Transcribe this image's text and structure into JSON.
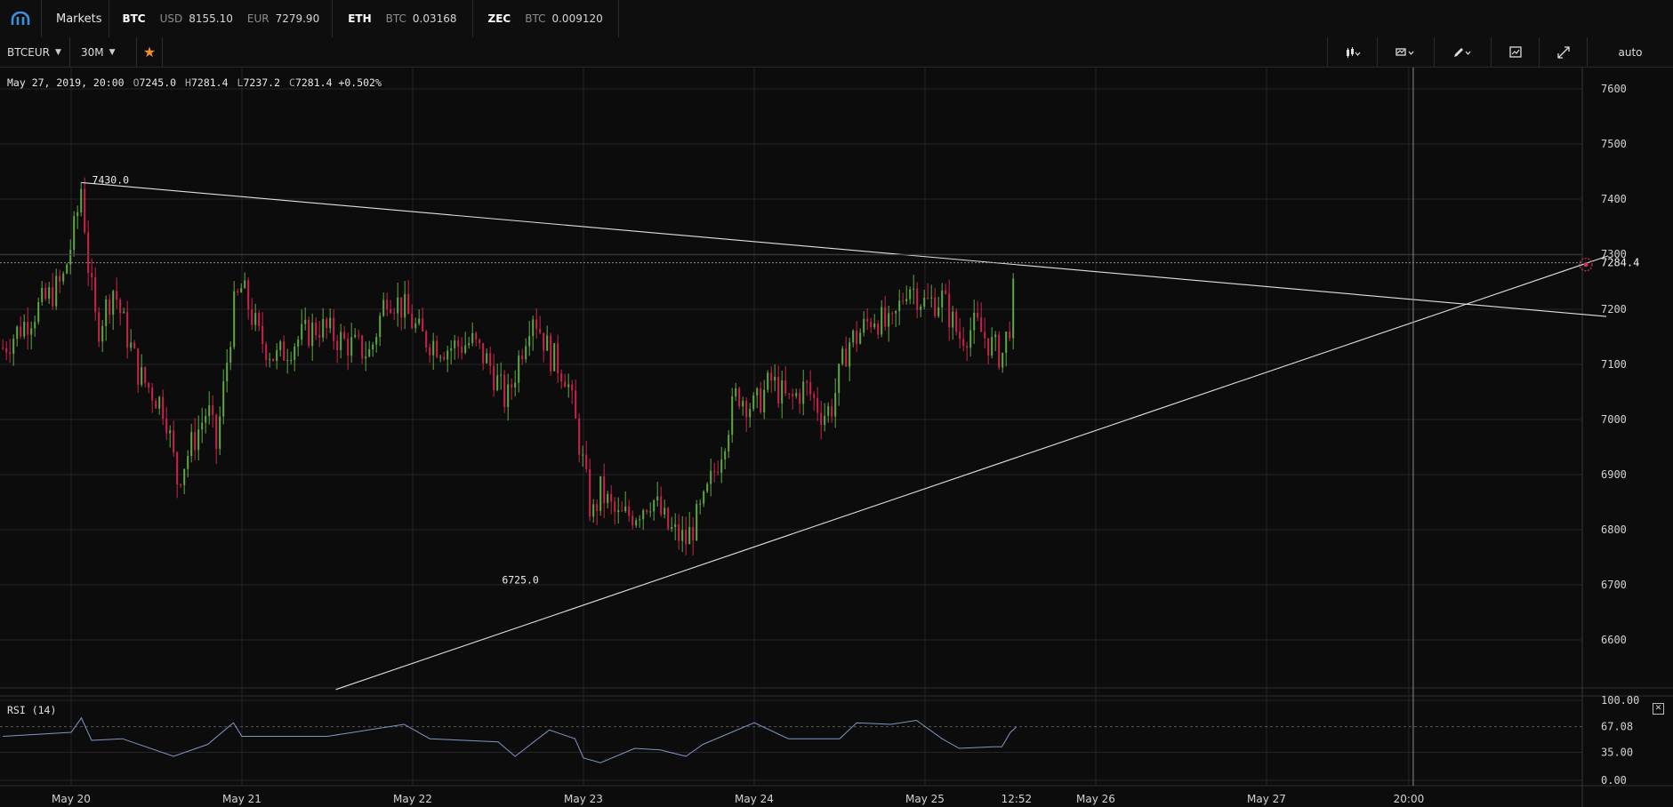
{
  "ticker": {
    "markets_label": "Markets",
    "items": [
      {
        "symbol": "BTC",
        "quotes": [
          {
            "cur": "USD",
            "val": "8155.10"
          },
          {
            "cur": "EUR",
            "val": "7279.90"
          }
        ]
      },
      {
        "symbol": "ETH",
        "quotes": [
          {
            "cur": "BTC",
            "val": "0.03168"
          }
        ]
      },
      {
        "symbol": "ZEC",
        "quotes": [
          {
            "cur": "BTC",
            "val": "0.009120"
          }
        ]
      }
    ]
  },
  "toolbar": {
    "pair": "BTCEUR",
    "interval": "30M",
    "scale_label": "auto",
    "icons": [
      "candle-type-icon",
      "indicators-icon",
      "drawing-pencil-icon",
      "study-icon",
      "fullscreen-icon"
    ]
  },
  "ohlc": {
    "date": "May 27, 2019, 20:00",
    "o_label": "O",
    "o": "7245.0",
    "h_label": "H",
    "h": "7281.4",
    "l_label": "L",
    "l": "7237.2",
    "c_label": "C",
    "c": "7281.4",
    "change": "+0.502%"
  },
  "rsi": {
    "label": "RSI (14)",
    "axis_labels": [
      "100.00",
      "67.08",
      "35.00",
      "0.00"
    ],
    "current": 67.08
  },
  "colors": {
    "background": "#0c0c0d",
    "up": "#5fa64a",
    "down": "#c8254a",
    "trendline": "#e2e2e2",
    "grid": "#252528"
  },
  "chart_data": {
    "type": "candlestick",
    "y_ticks": [
      7600,
      7500,
      7400,
      7300,
      7200,
      7100,
      7000,
      6900,
      6800,
      6700,
      6600
    ],
    "y_tick_labels": [
      "7600",
      "7500",
      "7400",
      "7300",
      "7200",
      "7100",
      "7000",
      "6900",
      "6800",
      "6700",
      "6600"
    ],
    "x_labels": [
      "May 20",
      "May 21",
      "May 22",
      "May 23",
      "May 24",
      "May 25",
      "12:52",
      "May 26",
      "May 27",
      "20:00"
    ],
    "x_label_times": [
      0,
      1,
      2,
      3,
      4,
      5,
      5.536,
      6,
      7,
      7.833
    ],
    "last_price": "7284.4",
    "last_price_value": 7284.4,
    "annotations": [
      {
        "text": "7430.0",
        "time": 0.06,
        "price": 7430
      },
      {
        "text": "6725.0",
        "time": 2.46,
        "price": 6725
      }
    ],
    "trendlines": [
      {
        "t1": 0.06,
        "p1": 7430,
        "t2": 8.99,
        "p2": 7187
      },
      {
        "t1": 1.55,
        "p1": 6510,
        "t2": 9.0,
        "p2": 7297
      }
    ],
    "crosshair_time": 7.833,
    "close_path": [
      [
        -0.4,
        7130
      ],
      [
        -0.2,
        7200
      ],
      [
        -0.05,
        7250
      ],
      [
        0.03,
        7360
      ],
      [
        0.06,
        7425
      ],
      [
        0.1,
        7280
      ],
      [
        0.15,
        7160
      ],
      [
        0.25,
        7240
      ],
      [
        0.3,
        7180
      ],
      [
        0.4,
        7080
      ],
      [
        0.55,
        7020
      ],
      [
        0.62,
        6890
      ],
      [
        0.7,
        6950
      ],
      [
        0.8,
        7020
      ],
      [
        0.85,
        6950
      ],
      [
        0.95,
        7200
      ],
      [
        1.0,
        7240
      ],
      [
        1.1,
        7150
      ],
      [
        1.2,
        7110
      ],
      [
        1.3,
        7140
      ],
      [
        1.45,
        7170
      ],
      [
        1.6,
        7140
      ],
      [
        1.75,
        7120
      ],
      [
        1.85,
        7230
      ],
      [
        1.95,
        7200
      ],
      [
        2.05,
        7150
      ],
      [
        2.2,
        7130
      ],
      [
        2.35,
        7140
      ],
      [
        2.45,
        7100
      ],
      [
        2.55,
        7030
      ],
      [
        2.7,
        7200
      ],
      [
        2.8,
        7120
      ],
      [
        2.9,
        7080
      ],
      [
        2.98,
        6950
      ],
      [
        3.05,
        6820
      ],
      [
        3.1,
        6870
      ],
      [
        3.2,
        6820
      ],
      [
        3.3,
        6830
      ],
      [
        3.4,
        6860
      ],
      [
        3.5,
        6800
      ],
      [
        3.6,
        6780
      ],
      [
        3.7,
        6840
      ],
      [
        3.8,
        6940
      ],
      [
        3.9,
        7050
      ],
      [
        4.0,
        7020
      ],
      [
        4.1,
        7070
      ],
      [
        4.2,
        7030
      ],
      [
        4.3,
        7060
      ],
      [
        4.4,
        7010
      ],
      [
        4.45,
        7020
      ],
      [
        4.55,
        7140
      ],
      [
        4.6,
        7150
      ],
      [
        4.7,
        7190
      ],
      [
        4.8,
        7160
      ],
      [
        4.9,
        7250
      ],
      [
        5.0,
        7210
      ],
      [
        5.1,
        7220
      ],
      [
        5.2,
        7150
      ],
      [
        5.3,
        7170
      ],
      [
        5.4,
        7130
      ],
      [
        5.45,
        7115
      ],
      [
        5.5,
        7180
      ],
      [
        5.536,
        7281
      ]
    ],
    "rsi_path": [
      [
        -0.4,
        55
      ],
      [
        0.0,
        60
      ],
      [
        0.06,
        78
      ],
      [
        0.12,
        50
      ],
      [
        0.3,
        52
      ],
      [
        0.6,
        30
      ],
      [
        0.8,
        45
      ],
      [
        0.95,
        72
      ],
      [
        1.0,
        55
      ],
      [
        1.5,
        55
      ],
      [
        1.95,
        70
      ],
      [
        2.1,
        52
      ],
      [
        2.5,
        48
      ],
      [
        2.6,
        30
      ],
      [
        2.8,
        63
      ],
      [
        2.95,
        52
      ],
      [
        3.0,
        28
      ],
      [
        3.1,
        22
      ],
      [
        3.3,
        40
      ],
      [
        3.45,
        38
      ],
      [
        3.6,
        30
      ],
      [
        3.7,
        45
      ],
      [
        4.0,
        72
      ],
      [
        4.2,
        52
      ],
      [
        4.5,
        52
      ],
      [
        4.6,
        72
      ],
      [
        4.8,
        70
      ],
      [
        4.95,
        75
      ],
      [
        5.1,
        52
      ],
      [
        5.2,
        40
      ],
      [
        5.4,
        42
      ],
      [
        5.45,
        42
      ],
      [
        5.5,
        60
      ],
      [
        5.536,
        67
      ]
    ],
    "ylim": [
      6512,
      7632
    ],
    "xlim": [
      -0.41,
      8.96
    ]
  }
}
